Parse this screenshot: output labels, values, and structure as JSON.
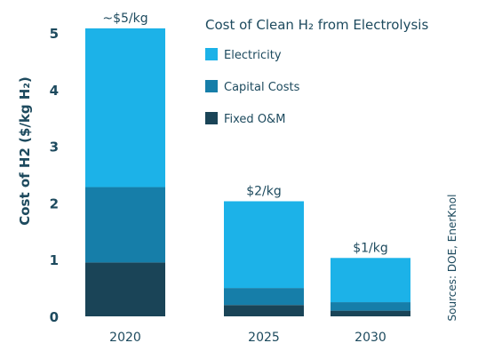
{
  "chart_data": {
    "type": "bar",
    "stacked": true,
    "title": "Cost of Clean H₂ from Electrolysis",
    "ylabel": "Cost of H2 ($/kg H₂)",
    "xlabel": "",
    "ylim": [
      0,
      5
    ],
    "yticks": [
      "0",
      "1",
      "2",
      "3",
      "4",
      "5"
    ],
    "categories": [
      "2020",
      "2025",
      "2030"
    ],
    "series": [
      {
        "name": "Fixed O&M",
        "values": [
          0.95,
          0.2,
          0.1
        ],
        "color": "#1a4457"
      },
      {
        "name": "Capital Costs",
        "values": [
          1.33,
          0.3,
          0.15
        ],
        "color": "#167ea9"
      },
      {
        "name": "Electricity",
        "values": [
          2.8,
          1.53,
          0.78
        ],
        "color": "#1cb2e8"
      }
    ],
    "bar_labels": [
      "~$5/kg",
      "$2/kg",
      "$1/kg"
    ],
    "legend_placement": "top-right",
    "legend_order": [
      "Electricity",
      "Capital Costs",
      "Fixed O&M"
    ],
    "grid": false,
    "source": "Sources: DOE, EnerKnol"
  }
}
